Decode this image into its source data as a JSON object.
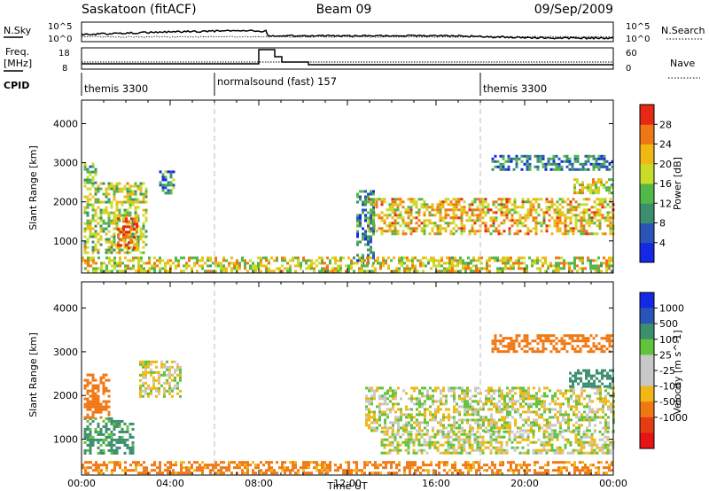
{
  "header": {
    "site": "Saskatoon (fitACF)",
    "beam": "Beam 09",
    "date": "09/Sep/2009"
  },
  "noise_panel": {
    "left_label": "N.Sky",
    "left_top": "10^5",
    "left_bottom": "10^0",
    "right_top": "10^5",
    "right_bottom": "10^0",
    "right_label": "N.Search"
  },
  "freq_panel": {
    "left_label_1": "Freq.",
    "left_label_2": "[MHz]",
    "left_top": "18",
    "left_bottom": "8",
    "right_top": "60",
    "right_bottom": "0",
    "right_label": "Nave"
  },
  "cpid": {
    "label": "CPID",
    "segments": [
      {
        "start_hour": 0,
        "label": "themis 3300"
      },
      {
        "start_hour": 6,
        "label": "normalsound (fast) 157"
      },
      {
        "start_hour": 18,
        "label": "themis 3300"
      }
    ]
  },
  "colors": {
    "power_scale": [
      "#1428e6",
      "#2a55b8",
      "#3c8f6e",
      "#52b84a",
      "#c8dc28",
      "#f0b814",
      "#f07814",
      "#e62814"
    ],
    "velocity_scale": [
      "#1428e6",
      "#2a55b8",
      "#3c8f6e",
      "#62c23c",
      "#c8c8c8",
      "#c8c8c8",
      "#f0b814",
      "#f07814",
      "#e63c14",
      "#e61414"
    ],
    "ground_scatter": "#bebebe"
  },
  "chart_data": [
    {
      "type": "heatmap",
      "name": "power",
      "xlabel": "",
      "ylabel": "Slant Range [km]",
      "xlim": [
        0,
        24
      ],
      "ylim": [
        180,
        4600
      ],
      "yticks": [
        1000,
        2000,
        3000,
        4000
      ],
      "colorbar": {
        "label": "Power [dB]",
        "range": [
          0,
          30
        ],
        "ticks": [
          "4",
          "8",
          "12",
          "16",
          "20",
          "24",
          "28"
        ]
      },
      "regions": [
        {
          "t": [
            0.1,
            2.9
          ],
          "r": [
            700,
            2500
          ],
          "v": 16
        },
        {
          "t": [
            1.6,
            2.5
          ],
          "r": [
            800,
            1600
          ],
          "v": 27
        },
        {
          "t": [
            0.1,
            0.7
          ],
          "r": [
            2500,
            3000
          ],
          "v": 12
        },
        {
          "t": [
            3.5,
            4.2
          ],
          "r": [
            2200,
            2800
          ],
          "v": 10
        },
        {
          "t": [
            12.9,
            24.0
          ],
          "r": [
            1200,
            2100
          ],
          "v": 20
        },
        {
          "t": [
            18.5,
            24.0
          ],
          "r": [
            2800,
            3200
          ],
          "v": 8
        },
        {
          "t": [
            22.2,
            24.0
          ],
          "r": [
            2200,
            2600
          ],
          "v": 18
        },
        {
          "t": [
            12.4,
            13.2
          ],
          "r": [
            400,
            2300
          ],
          "v": 9
        },
        {
          "t": [
            0.0,
            24.0
          ],
          "r": [
            200,
            600
          ],
          "v": 18
        }
      ]
    },
    {
      "type": "heatmap",
      "name": "velocity",
      "xlabel": "Time UT",
      "ylabel": "Slant Range [km]",
      "xlim": [
        0,
        24
      ],
      "ylim": [
        180,
        4600
      ],
      "yticks": [
        1000,
        2000,
        3000,
        4000
      ],
      "xticks": [
        "00:00",
        "04:00",
        "08:00",
        "12:00",
        "16:00",
        "20:00",
        "00:00"
      ],
      "colorbar": {
        "label": "Velocity [m s^-1]",
        "ticks": [
          "1000",
          "500",
          "100",
          "25",
          "-25",
          "-100",
          "-500",
          "-1000"
        ]
      },
      "regions": [
        {
          "t": [
            0.1,
            2.3
          ],
          "r": [
            700,
            1500
          ],
          "v": 150
        },
        {
          "t": [
            0.1,
            1.2
          ],
          "r": [
            1500,
            2500
          ],
          "v": -300
        },
        {
          "t": [
            2.6,
            4.5
          ],
          "r": [
            2000,
            2800
          ],
          "v": 0
        },
        {
          "t": [
            12.8,
            24.0
          ],
          "r": [
            1200,
            2200
          ],
          "v": 0
        },
        {
          "t": [
            13.5,
            24.0
          ],
          "r": [
            700,
            1200
          ],
          "v": 0
        },
        {
          "t": [
            22.0,
            24.0
          ],
          "r": [
            2200,
            2600
          ],
          "v": 200
        },
        {
          "t": [
            18.5,
            24.0
          ],
          "r": [
            3000,
            3400
          ],
          "v": -200
        },
        {
          "t": [
            0.0,
            24.0
          ],
          "r": [
            200,
            500
          ],
          "v": -150
        }
      ]
    }
  ]
}
